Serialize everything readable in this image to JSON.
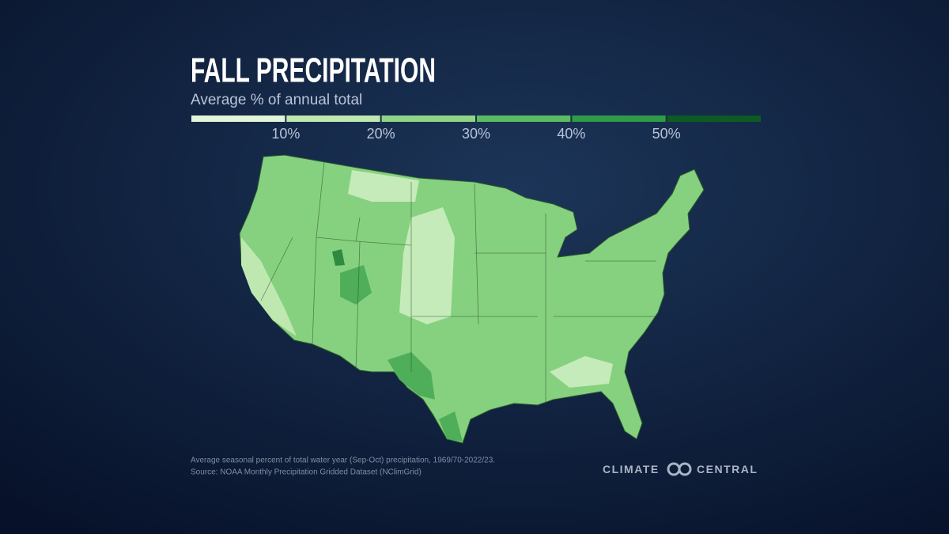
{
  "header": {
    "title": "FALL PRECIPITATION",
    "subtitle": "Average % of annual total"
  },
  "legend": {
    "colors": [
      "#e2f5da",
      "#bfe8b1",
      "#8fd588",
      "#5bbd62",
      "#2f9a47",
      "#0d5a23"
    ],
    "ticks": [
      {
        "value": 10,
        "label": "10%"
      },
      {
        "value": 20,
        "label": "20%"
      },
      {
        "value": 30,
        "label": "30%"
      },
      {
        "value": 40,
        "label": "40%"
      },
      {
        "value": 50,
        "label": "50%"
      }
    ]
  },
  "footer": {
    "note": "Average seasonal percent of total water year (Sep-Oct) precipitation, 1969/70-2022/23.",
    "source": "Source: NOAA Monthly Precipitation Gridded Dataset (NClimGrid)",
    "logo": "CLIMATE CENTRAL"
  }
}
